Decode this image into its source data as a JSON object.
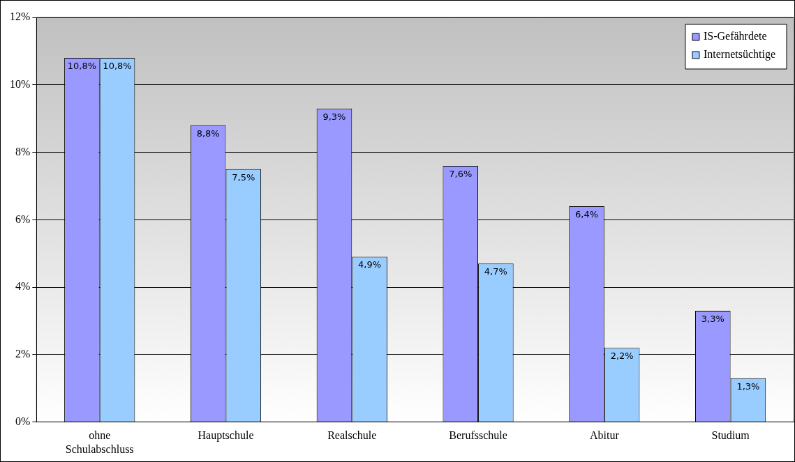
{
  "chart_data": {
    "type": "bar",
    "categories": [
      "ohne Schulabschluss",
      "Hauptschule",
      "Realschule",
      "Berufsschule",
      "Abitur",
      "Studium"
    ],
    "series": [
      {
        "name": "IS-Gefährdete",
        "color": "#9999ff",
        "values": [
          10.8,
          8.8,
          9.3,
          7.6,
          6.4,
          3.3
        ],
        "value_labels": [
          "10,8%",
          "8,8%",
          "9,3%",
          "7,6%",
          "6,4%",
          "3,3%"
        ]
      },
      {
        "name": "Internetsüchtige",
        "color": "#99ccff",
        "values": [
          10.8,
          7.5,
          4.9,
          4.7,
          2.2,
          1.3
        ],
        "value_labels": [
          "10,8%",
          "7,5%",
          "4,9%",
          "4,7%",
          "2,2%",
          "1,3%"
        ]
      }
    ],
    "ylim": [
      0,
      12
    ],
    "yticks": [
      {
        "value": 0,
        "label": "0%"
      },
      {
        "value": 2,
        "label": "2%"
      },
      {
        "value": 4,
        "label": "4%"
      },
      {
        "value": 6,
        "label": "6%"
      },
      {
        "value": 8,
        "label": "8%"
      },
      {
        "value": 10,
        "label": "10%"
      },
      {
        "value": 12,
        "label": "12%"
      }
    ],
    "grid": "y",
    "legend": "top right"
  }
}
